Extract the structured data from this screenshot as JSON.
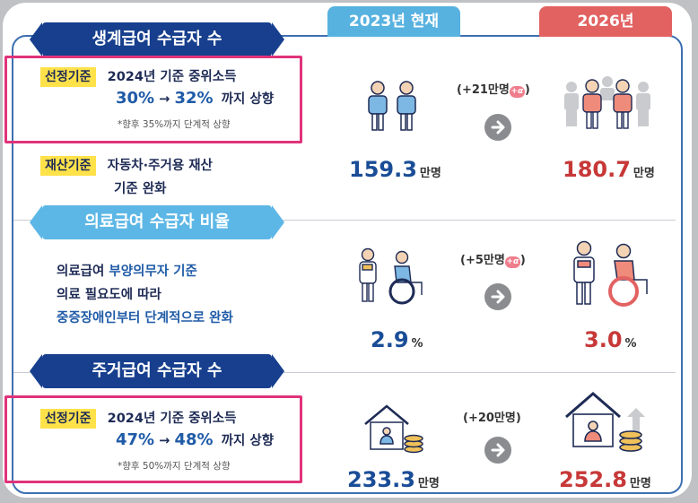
{
  "columns": {
    "current": "2023년 현재",
    "future": "2026년"
  },
  "sections": [
    {
      "title": "생계급여 수급자 수",
      "criteria": {
        "tag": "선정기준",
        "line1": "2024년 기준 중위소득",
        "from": "30%",
        "arrow": "→",
        "to": "32%",
        "suffix": "까지 상향",
        "note": "*향후 35%까지 단계적 상향"
      },
      "property": {
        "tag": "재산기준",
        "line1": "자동차·주거용 재산",
        "line2": "기준 완화"
      },
      "increase": "(+21만명",
      "current_value": "159.3",
      "future_value": "180.7",
      "unit": "만명"
    },
    {
      "title": "의료급여 수급자 비율",
      "text_line1_a": "의료급여 ",
      "text_line1_b": "부양의무자 기준",
      "text_line2": "의료 필요도에 따라",
      "text_line3": "중증장애인부터 단계적으로 완화",
      "increase": "(+5만명",
      "current_value": "2.9",
      "future_value": "3.0",
      "unit": "%"
    },
    {
      "title": "주거급여 수급자 수",
      "criteria": {
        "tag": "선정기준",
        "line1": "2024년 기준 중위소득",
        "from": "47%",
        "arrow": "→",
        "to": "48%",
        "suffix": "까지 상향",
        "note": "*향후 50%까지 단계적 상향"
      },
      "increase": "(+20만명)",
      "current_value": "233.3",
      "future_value": "252.8",
      "unit": "만명"
    }
  ],
  "alpha_badge": "+α",
  "alpha_close": ")",
  "colors": {
    "navy": "#173f8e",
    "light_blue": "#5db7e6",
    "highlight_pink": "#e0337a",
    "tag_yellow": "#ffe24a",
    "current_col": "#58b2e0",
    "future_col": "#e26262"
  }
}
